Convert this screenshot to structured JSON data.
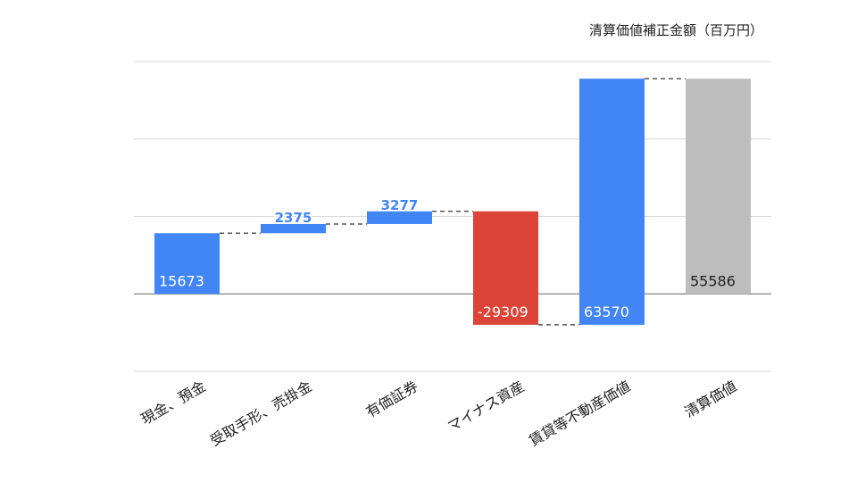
{
  "chart_data": {
    "type": "bar",
    "subtype": "waterfall",
    "title": "清算価値補正金額（百万円）",
    "categories": [
      "現金、預金",
      "受取手形、売掛金",
      "有価証券",
      "マイナス資産",
      "賃貸等不動産価値",
      "清算価値"
    ],
    "values": [
      15673,
      2375,
      3277,
      -29309,
      63570,
      55586
    ],
    "value_labels": [
      "15673",
      "2375",
      "3277",
      "-29309",
      "63570",
      "55586"
    ],
    "total_index": 5,
    "ylim": [
      -20000,
      60000
    ],
    "grid": true,
    "legend": "none",
    "colors": {
      "increase": "#4285f4",
      "decrease": "#db4437",
      "total": "#bdbdbd",
      "label_on_dark": "#ffffff",
      "label_on_total": "#222222"
    }
  }
}
